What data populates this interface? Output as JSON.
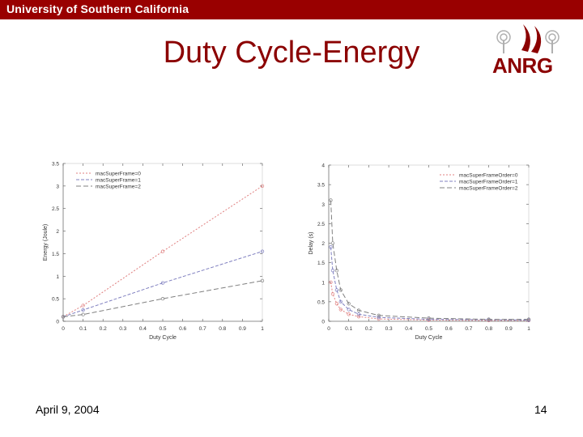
{
  "banner": {
    "text": "University of Southern California"
  },
  "slide": {
    "title": "Duty Cycle-Energy",
    "date": "April 9, 2004",
    "page_number": "14"
  },
  "logo": {
    "text": "ANRG"
  },
  "colors": {
    "banner": "#990000",
    "title": "#8b0000",
    "series": [
      "#e08080",
      "#8080c0",
      "#808080"
    ]
  },
  "chart_data": [
    {
      "type": "line",
      "xlabel": "Duty Cycle",
      "ylabel": "Energy (Joule)",
      "xlim": [
        0,
        1
      ],
      "ylim": [
        0,
        3.5
      ],
      "xticks": [
        "0",
        "0.1",
        "0.2",
        "0.3",
        "0.4",
        "0.5",
        "0.6",
        "0.7",
        "0.8",
        "0.9",
        "1"
      ],
      "yticks": [
        "0",
        "0.5",
        "1",
        "1.5",
        "2",
        "2.5",
        "3",
        "3.5"
      ],
      "legend_position": "top-left",
      "series": [
        {
          "name": "macSuperFrame=0",
          "x": [
            0,
            0.1,
            0.5,
            1
          ],
          "y": [
            0.1,
            0.35,
            1.55,
            3.0
          ]
        },
        {
          "name": "macSuperFrame=1",
          "x": [
            0,
            0.1,
            0.5,
            1
          ],
          "y": [
            0.1,
            0.25,
            0.85,
            1.55
          ]
        },
        {
          "name": "macSuperFrame=2",
          "x": [
            0,
            0.1,
            0.5,
            1
          ],
          "y": [
            0.1,
            0.15,
            0.5,
            0.9
          ]
        }
      ]
    },
    {
      "type": "line",
      "xlabel": "Duty Cycle",
      "ylabel": "Delay (s)",
      "xlim": [
        0,
        1
      ],
      "ylim": [
        0,
        4
      ],
      "xticks": [
        "0",
        "0.1",
        "0.2",
        "0.3",
        "0.4",
        "0.5",
        "0.6",
        "0.7",
        "0.8",
        "0.9",
        "1"
      ],
      "yticks": [
        "0",
        "0.5",
        "1",
        "1.5",
        "2",
        "2.5",
        "3",
        "3.5",
        "4"
      ],
      "legend_position": "top-right",
      "series": [
        {
          "name": "macSuperFrameOrder=0",
          "x": [
            0.01,
            0.02,
            0.04,
            0.06,
            0.1,
            0.15,
            0.25,
            0.5,
            0.8,
            1
          ],
          "y": [
            1.0,
            0.7,
            0.45,
            0.3,
            0.18,
            0.12,
            0.06,
            0.03,
            0.02,
            0.02
          ]
        },
        {
          "name": "macSuperFrameOrder=1",
          "x": [
            0.01,
            0.02,
            0.04,
            0.06,
            0.1,
            0.15,
            0.25,
            0.5,
            0.8,
            1
          ],
          "y": [
            1.9,
            1.3,
            0.8,
            0.5,
            0.3,
            0.18,
            0.1,
            0.05,
            0.04,
            0.03
          ]
        },
        {
          "name": "macSuperFrameOrder=2",
          "x": [
            0.01,
            0.02,
            0.04,
            0.06,
            0.1,
            0.15,
            0.25,
            0.5,
            0.8,
            1
          ],
          "y": [
            3.1,
            2.0,
            1.3,
            0.8,
            0.45,
            0.28,
            0.15,
            0.08,
            0.05,
            0.05
          ]
        }
      ]
    }
  ]
}
